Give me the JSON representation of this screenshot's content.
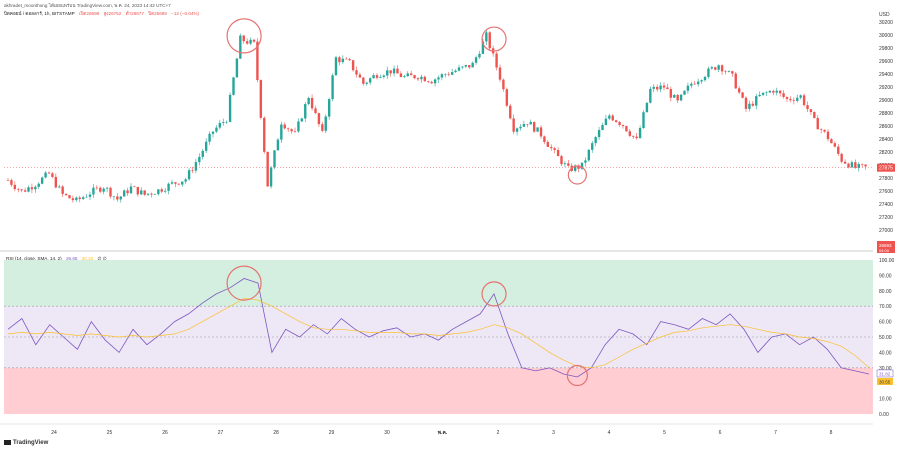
{
  "header": {
    "watermark": "akhradet_moonthong ได้เผยแพร่บน TradingView.com, พ.ค. 24, 2023 14:42 UTC+7",
    "symbol_line": "บิตคอยน์ / ดอลลาร์, 1h, BITSTAMP",
    "ohlc": {
      "o": "เปิด26698",
      "h": "สูง26752",
      "l": "ต่ำ26677",
      "c": "ปิด26695",
      "chg": "−12 (−0.04%)"
    }
  },
  "rsi_header": {
    "label": "RSI (14, close, SMA, 14, 2)",
    "rsi": "26.65",
    "sma": "30.33",
    "extra": "∅ ∅"
  },
  "price_axis": {
    "currency": "USD",
    "ticks": [
      "30200",
      "30000",
      "29800",
      "29600",
      "29400",
      "29200",
      "29000",
      "28800",
      "28600",
      "28400",
      "28200",
      "28000",
      "27800",
      "27600",
      "27400",
      "27200",
      "27000",
      "26800"
    ],
    "last_label": "27875",
    "bottom_badge": "26693",
    "bottom_badge_sub": "04:00"
  },
  "rsi_axis": {
    "ticks": [
      "100.00",
      "90.00",
      "80.00",
      "70.00",
      "60.00",
      "50.00",
      "40.00",
      "30.00",
      "20.00",
      "10.00",
      "0.00"
    ],
    "last_label": "31.82",
    "sma_label": "30.55"
  },
  "time_axis": [
    "24",
    "25",
    "26",
    "27",
    "28",
    "29",
    "30",
    "พ.ค.",
    "2",
    "3",
    "4",
    "5",
    "6",
    "7",
    "8"
  ],
  "branding": "TradingView",
  "colors": {
    "up": "#26a69a",
    "down": "#ef5350",
    "rsi_line": "#7e57c2",
    "rsi_sma": "#fbc02d",
    "overbought": "#d4efdf",
    "oversold": "#ffcdd2",
    "mid_band": "#ede7f6",
    "circle": "#e57373"
  },
  "chart_data": [
    {
      "type": "candlestick",
      "title": "",
      "ylim": [
        26800,
        30200
      ],
      "x_ticks": [
        "24",
        "25",
        "26",
        "27",
        "28",
        "29",
        "30",
        "พ.ค.",
        "2",
        "3",
        "4",
        "5",
        "6",
        "7",
        "8"
      ],
      "close_path": [
        27680,
        27500,
        27620,
        27780,
        27450,
        27350,
        27480,
        27580,
        27380,
        27560,
        27450,
        27520,
        27620,
        27700,
        28050,
        28450,
        28650,
        29900,
        29820,
        27600,
        28600,
        28400,
        29000,
        28400,
        29600,
        29520,
        29200,
        29350,
        29400,
        29300,
        29320,
        29250,
        29350,
        29420,
        29500,
        29950,
        29300,
        28500,
        28600,
        28400,
        28100,
        27850,
        27900,
        28350,
        28700,
        28550,
        28300,
        29100,
        29150,
        28900,
        29200,
        29350,
        29500,
        29300,
        28800,
        29000,
        29100,
        28950,
        29000,
        28600,
        28350,
        28000,
        27875
      ],
      "annotations": [
        "peak-circle-1",
        "peak-circle-2",
        "low-circle"
      ]
    },
    {
      "type": "line",
      "title": "RSI (14, close, SMA, 14, 2)",
      "ylim": [
        0,
        100
      ],
      "series": [
        {
          "name": "RSI",
          "values": [
            55,
            62,
            45,
            58,
            50,
            42,
            60,
            48,
            40,
            55,
            45,
            52,
            60,
            65,
            72,
            78,
            82,
            88,
            85,
            40,
            55,
            50,
            58,
            52,
            62,
            55,
            50,
            54,
            56,
            50,
            52,
            48,
            55,
            60,
            65,
            78,
            52,
            30,
            28,
            30,
            26,
            24,
            30,
            45,
            55,
            52,
            45,
            60,
            58,
            55,
            62,
            58,
            65,
            55,
            40,
            50,
            52,
            45,
            50,
            42,
            30,
            28,
            26
          ]
        },
        {
          "name": "SMA",
          "values": [
            52,
            53,
            52,
            53,
            52,
            51,
            52,
            51,
            50,
            51,
            50,
            51,
            52,
            55,
            60,
            65,
            70,
            75,
            74,
            70,
            65,
            60,
            56,
            55,
            55,
            54,
            53,
            53,
            53,
            52,
            52,
            51,
            52,
            53,
            55,
            58,
            56,
            52,
            46,
            40,
            35,
            31,
            30,
            32,
            37,
            42,
            46,
            50,
            53,
            54,
            56,
            57,
            58,
            57,
            55,
            53,
            52,
            50,
            49,
            47,
            44,
            38,
            30
          ]
        }
      ],
      "levels": [
        70,
        50,
        30
      ]
    }
  ]
}
